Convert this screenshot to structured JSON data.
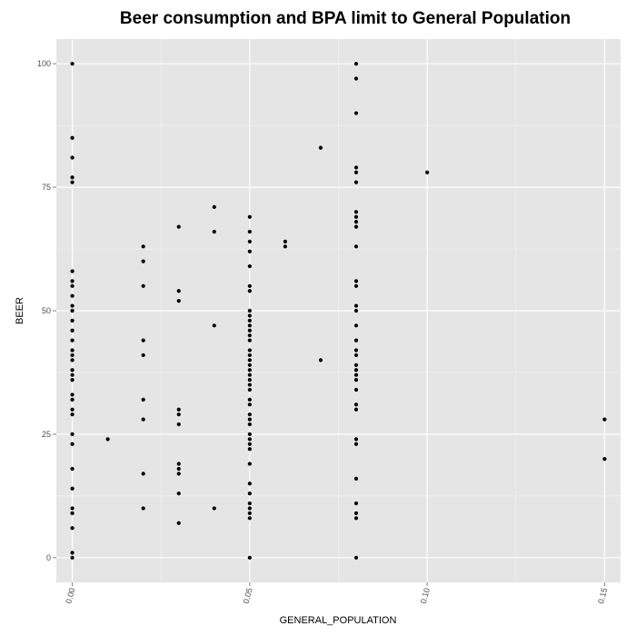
{
  "chart_data": {
    "type": "scatter",
    "title": "Beer consumption and BPA limit to General Population",
    "xlabel": "GENERAL_POPULATION",
    "ylabel": "BEER",
    "xlim": [
      -0.0045,
      0.1545
    ],
    "ylim": [
      -5,
      105
    ],
    "x_ticks": [
      0.0,
      0.05,
      0.1,
      0.15
    ],
    "x_tick_labels": [
      "0.00",
      "0.05",
      "0.10",
      "0.15"
    ],
    "y_ticks": [
      0,
      25,
      50,
      75,
      100
    ],
    "y_tick_labels": [
      "0",
      "25",
      "50",
      "75",
      "100"
    ],
    "grid": true,
    "point_color": "#000000",
    "panel_color": "#e5e5e5",
    "grid_color": "#ffffff",
    "points": [
      {
        "x": 0.0,
        "y": 100
      },
      {
        "x": 0.0,
        "y": 85
      },
      {
        "x": 0.0,
        "y": 81
      },
      {
        "x": 0.0,
        "y": 77
      },
      {
        "x": 0.0,
        "y": 76
      },
      {
        "x": 0.0,
        "y": 58
      },
      {
        "x": 0.0,
        "y": 56
      },
      {
        "x": 0.0,
        "y": 55
      },
      {
        "x": 0.0,
        "y": 53
      },
      {
        "x": 0.0,
        "y": 51
      },
      {
        "x": 0.0,
        "y": 50
      },
      {
        "x": 0.0,
        "y": 48
      },
      {
        "x": 0.0,
        "y": 46
      },
      {
        "x": 0.0,
        "y": 44
      },
      {
        "x": 0.0,
        "y": 42
      },
      {
        "x": 0.0,
        "y": 41
      },
      {
        "x": 0.0,
        "y": 40
      },
      {
        "x": 0.0,
        "y": 38
      },
      {
        "x": 0.0,
        "y": 37
      },
      {
        "x": 0.0,
        "y": 36
      },
      {
        "x": 0.0,
        "y": 33
      },
      {
        "x": 0.0,
        "y": 32
      },
      {
        "x": 0.0,
        "y": 30
      },
      {
        "x": 0.0,
        "y": 29
      },
      {
        "x": 0.0,
        "y": 25
      },
      {
        "x": 0.0,
        "y": 23
      },
      {
        "x": 0.0,
        "y": 18
      },
      {
        "x": 0.0,
        "y": 14
      },
      {
        "x": 0.0,
        "y": 10
      },
      {
        "x": 0.0,
        "y": 9
      },
      {
        "x": 0.0,
        "y": 6
      },
      {
        "x": 0.0,
        "y": 1
      },
      {
        "x": 0.0,
        "y": 0
      },
      {
        "x": 0.01,
        "y": 24
      },
      {
        "x": 0.02,
        "y": 63
      },
      {
        "x": 0.02,
        "y": 60
      },
      {
        "x": 0.02,
        "y": 55
      },
      {
        "x": 0.02,
        "y": 44
      },
      {
        "x": 0.02,
        "y": 41
      },
      {
        "x": 0.02,
        "y": 32
      },
      {
        "x": 0.02,
        "y": 28
      },
      {
        "x": 0.02,
        "y": 17
      },
      {
        "x": 0.02,
        "y": 10
      },
      {
        "x": 0.03,
        "y": 67
      },
      {
        "x": 0.03,
        "y": 54
      },
      {
        "x": 0.03,
        "y": 52
      },
      {
        "x": 0.03,
        "y": 30
      },
      {
        "x": 0.03,
        "y": 29
      },
      {
        "x": 0.03,
        "y": 27
      },
      {
        "x": 0.03,
        "y": 19
      },
      {
        "x": 0.03,
        "y": 18
      },
      {
        "x": 0.03,
        "y": 17
      },
      {
        "x": 0.03,
        "y": 13
      },
      {
        "x": 0.03,
        "y": 7
      },
      {
        "x": 0.04,
        "y": 71
      },
      {
        "x": 0.04,
        "y": 66
      },
      {
        "x": 0.04,
        "y": 47
      },
      {
        "x": 0.04,
        "y": 10
      },
      {
        "x": 0.05,
        "y": 69
      },
      {
        "x": 0.05,
        "y": 66
      },
      {
        "x": 0.05,
        "y": 64
      },
      {
        "x": 0.05,
        "y": 62
      },
      {
        "x": 0.05,
        "y": 59
      },
      {
        "x": 0.05,
        "y": 55
      },
      {
        "x": 0.05,
        "y": 54
      },
      {
        "x": 0.05,
        "y": 50
      },
      {
        "x": 0.05,
        "y": 49
      },
      {
        "x": 0.05,
        "y": 48
      },
      {
        "x": 0.05,
        "y": 47
      },
      {
        "x": 0.05,
        "y": 46
      },
      {
        "x": 0.05,
        "y": 45
      },
      {
        "x": 0.05,
        "y": 44
      },
      {
        "x": 0.05,
        "y": 42
      },
      {
        "x": 0.05,
        "y": 41
      },
      {
        "x": 0.05,
        "y": 40
      },
      {
        "x": 0.05,
        "y": 39
      },
      {
        "x": 0.05,
        "y": 38
      },
      {
        "x": 0.05,
        "y": 37
      },
      {
        "x": 0.05,
        "y": 36
      },
      {
        "x": 0.05,
        "y": 35
      },
      {
        "x": 0.05,
        "y": 34
      },
      {
        "x": 0.05,
        "y": 32
      },
      {
        "x": 0.05,
        "y": 31
      },
      {
        "x": 0.05,
        "y": 29
      },
      {
        "x": 0.05,
        "y": 28
      },
      {
        "x": 0.05,
        "y": 27
      },
      {
        "x": 0.05,
        "y": 25
      },
      {
        "x": 0.05,
        "y": 24
      },
      {
        "x": 0.05,
        "y": 23
      },
      {
        "x": 0.05,
        "y": 22
      },
      {
        "x": 0.05,
        "y": 19
      },
      {
        "x": 0.05,
        "y": 15
      },
      {
        "x": 0.05,
        "y": 13
      },
      {
        "x": 0.05,
        "y": 11
      },
      {
        "x": 0.05,
        "y": 10
      },
      {
        "x": 0.05,
        "y": 9
      },
      {
        "x": 0.05,
        "y": 8
      },
      {
        "x": 0.05,
        "y": 0
      },
      {
        "x": 0.06,
        "y": 64
      },
      {
        "x": 0.06,
        "y": 63
      },
      {
        "x": 0.07,
        "y": 83
      },
      {
        "x": 0.07,
        "y": 40
      },
      {
        "x": 0.08,
        "y": 100
      },
      {
        "x": 0.08,
        "y": 97
      },
      {
        "x": 0.08,
        "y": 90
      },
      {
        "x": 0.08,
        "y": 79
      },
      {
        "x": 0.08,
        "y": 78
      },
      {
        "x": 0.08,
        "y": 76
      },
      {
        "x": 0.08,
        "y": 70
      },
      {
        "x": 0.08,
        "y": 69
      },
      {
        "x": 0.08,
        "y": 68
      },
      {
        "x": 0.08,
        "y": 67
      },
      {
        "x": 0.08,
        "y": 63
      },
      {
        "x": 0.08,
        "y": 56
      },
      {
        "x": 0.08,
        "y": 55
      },
      {
        "x": 0.08,
        "y": 51
      },
      {
        "x": 0.08,
        "y": 50
      },
      {
        "x": 0.08,
        "y": 47
      },
      {
        "x": 0.08,
        "y": 44
      },
      {
        "x": 0.08,
        "y": 42
      },
      {
        "x": 0.08,
        "y": 41
      },
      {
        "x": 0.08,
        "y": 39
      },
      {
        "x": 0.08,
        "y": 38
      },
      {
        "x": 0.08,
        "y": 37
      },
      {
        "x": 0.08,
        "y": 36
      },
      {
        "x": 0.08,
        "y": 34
      },
      {
        "x": 0.08,
        "y": 31
      },
      {
        "x": 0.08,
        "y": 30
      },
      {
        "x": 0.08,
        "y": 24
      },
      {
        "x": 0.08,
        "y": 23
      },
      {
        "x": 0.08,
        "y": 16
      },
      {
        "x": 0.08,
        "y": 11
      },
      {
        "x": 0.08,
        "y": 9
      },
      {
        "x": 0.08,
        "y": 8
      },
      {
        "x": 0.08,
        "y": 0
      },
      {
        "x": 0.1,
        "y": 78
      },
      {
        "x": 0.15,
        "y": 28
      },
      {
        "x": 0.15,
        "y": 20
      }
    ]
  }
}
